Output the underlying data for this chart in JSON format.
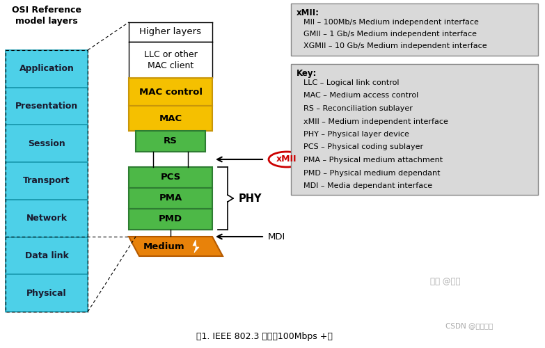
{
  "title": "图1. IEEE 802.3 标准（100Mbps +）",
  "watermark": "知乎 @墨米",
  "watermark2": "CSDN @文可明志",
  "bg_color": "#ffffff",
  "osi_title": "OSI Reference\nmodel layers",
  "osi_layers": [
    "Application",
    "Presentation",
    "Session",
    "Transport",
    "Network",
    "Data link",
    "Physical"
  ],
  "osi_color": "#4dd0e8",
  "osi_border": "#1a9ab0",
  "center_title": "Higher layers",
  "xmii_box": {
    "title": "xMII:",
    "lines": [
      "MII – 100Mb/s Medium independent interface",
      "GMII – 1 Gb/s Medium independent interface",
      "XGMII – 10 Gb/s Medium independent interface"
    ]
  },
  "key_box": {
    "title": "Key:",
    "lines": [
      "LLC – Logical link control",
      "MAC – Medium access control",
      "RS – Reconciliation sublayer",
      "xMII – Medium independent interface",
      "PHY – Physical layer device",
      "PCS – Physical coding sublayer",
      "PMA – Physical medium attachment",
      "PMD – Physical medium dependant",
      "MDI – Media dependant interface"
    ]
  },
  "yellow": "#f5c000",
  "yellow_border": "#c8960a",
  "green": "#4db847",
  "green_border": "#2e7d32",
  "orange": "#e8820a",
  "orange_border": "#b55a00",
  "gray_box": "#d9d9d9",
  "gray_border": "#888888"
}
